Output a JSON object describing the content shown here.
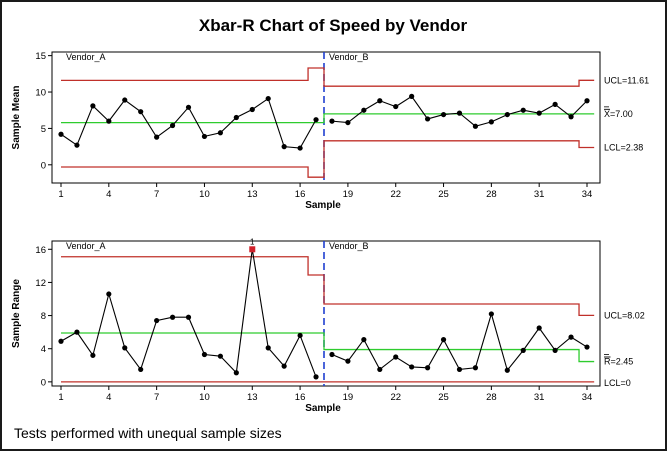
{
  "title": "Xbar-R Chart of Speed by Vendor",
  "footnote": "Tests performed with unequal sample sizes",
  "colors": {
    "data": "#000000",
    "limits": "#c0302a",
    "center": "#2ecc2e",
    "stage_divider": "#1f3fd0",
    "flagged_point": "#d0202a"
  },
  "chart_data": [
    {
      "type": "line",
      "name": "xbar",
      "xlabel": "Sample",
      "ylabel": "Sample Mean",
      "xlim": [
        1,
        34
      ],
      "ylim": [
        -2.5,
        15.5
      ],
      "x_ticks": [
        1,
        4,
        7,
        10,
        13,
        16,
        19,
        22,
        25,
        28,
        31,
        34
      ],
      "y_ticks": [
        0,
        5,
        10,
        15
      ],
      "stages": [
        {
          "label": "Vendor_A",
          "samples": [
            1,
            17
          ]
        },
        {
          "label": "Vendor_B",
          "samples": [
            18,
            34
          ]
        }
      ],
      "limit_labels": {
        "ucl": "UCL=11.61",
        "center": "X=7.00",
        "center_symbol": "X",
        "center_value": "=7.00",
        "lcl": "LCL=2.38"
      },
      "x": [
        1,
        2,
        3,
        4,
        5,
        6,
        7,
        8,
        9,
        10,
        11,
        12,
        13,
        14,
        15,
        16,
        17,
        18,
        19,
        20,
        21,
        22,
        23,
        24,
        25,
        26,
        27,
        28,
        29,
        30,
        31,
        32,
        33,
        34
      ],
      "values": [
        4.2,
        2.7,
        8.1,
        6.0,
        8.9,
        7.3,
        3.8,
        5.4,
        7.9,
        3.9,
        4.4,
        6.5,
        7.6,
        9.1,
        2.5,
        2.3,
        6.2,
        6.0,
        5.8,
        7.5,
        8.8,
        8.0,
        9.4,
        6.3,
        6.9,
        7.1,
        5.3,
        5.9,
        6.9,
        7.5,
        7.1,
        8.3,
        6.6,
        8.8
      ],
      "ucl": [
        11.6,
        11.6,
        11.6,
        11.6,
        11.6,
        11.6,
        11.6,
        11.6,
        11.6,
        11.6,
        11.6,
        11.6,
        11.6,
        11.6,
        11.6,
        11.6,
        13.3,
        10.8,
        10.8,
        10.8,
        10.8,
        10.8,
        10.8,
        10.8,
        10.8,
        10.8,
        10.8,
        10.8,
        10.8,
        10.8,
        10.8,
        10.8,
        10.8,
        11.61
      ],
      "center": [
        5.8,
        5.8,
        5.8,
        5.8,
        5.8,
        5.8,
        5.8,
        5.8,
        5.8,
        5.8,
        5.8,
        5.8,
        5.8,
        5.8,
        5.8,
        5.8,
        5.8,
        7.0,
        7.0,
        7.0,
        7.0,
        7.0,
        7.0,
        7.0,
        7.0,
        7.0,
        7.0,
        7.0,
        7.0,
        7.0,
        7.0,
        7.0,
        7.0,
        7.0
      ],
      "lcl": [
        -0.3,
        -0.3,
        -0.3,
        -0.3,
        -0.3,
        -0.3,
        -0.3,
        -0.3,
        -0.3,
        -0.3,
        -0.3,
        -0.3,
        -0.3,
        -0.3,
        -0.3,
        -0.3,
        -1.7,
        3.3,
        3.3,
        3.3,
        3.3,
        3.3,
        3.3,
        3.3,
        3.3,
        3.3,
        3.3,
        3.3,
        3.3,
        3.3,
        3.3,
        3.3,
        3.3,
        2.38
      ]
    },
    {
      "type": "line",
      "name": "range",
      "xlabel": "Sample",
      "ylabel": "Sample Range",
      "xlim": [
        1,
        34
      ],
      "ylim": [
        -0.5,
        17
      ],
      "x_ticks": [
        1,
        4,
        7,
        10,
        13,
        16,
        19,
        22,
        25,
        28,
        31,
        34
      ],
      "y_ticks": [
        0,
        4,
        8,
        12,
        16
      ],
      "stages": [
        {
          "label": "Vendor_A",
          "samples": [
            1,
            17
          ]
        },
        {
          "label": "Vendor_B",
          "samples": [
            18,
            34
          ]
        }
      ],
      "limit_labels": {
        "ucl": "UCL=8.02",
        "center": "R=2.45",
        "center_symbol": "R",
        "center_value": "=2.45",
        "lcl": "LCL=0"
      },
      "flagged": [
        {
          "x": 13,
          "marker": "1"
        }
      ],
      "x": [
        1,
        2,
        3,
        4,
        5,
        6,
        7,
        8,
        9,
        10,
        11,
        12,
        13,
        14,
        15,
        16,
        17,
        18,
        19,
        20,
        21,
        22,
        23,
        24,
        25,
        26,
        27,
        28,
        29,
        30,
        31,
        32,
        33,
        34
      ],
      "values": [
        4.9,
        6.0,
        3.2,
        10.6,
        4.1,
        1.5,
        7.4,
        7.8,
        7.8,
        3.3,
        3.1,
        1.1,
        16.0,
        4.1,
        1.9,
        5.6,
        0.6,
        3.3,
        2.5,
        5.1,
        1.5,
        3.0,
        1.8,
        1.7,
        5.1,
        1.5,
        1.7,
        8.2,
        1.4,
        3.8,
        6.5,
        3.8,
        5.4,
        4.2
      ],
      "ucl": [
        15.1,
        15.1,
        15.1,
        15.1,
        15.1,
        15.1,
        15.1,
        15.1,
        15.1,
        15.1,
        15.1,
        15.1,
        15.1,
        15.1,
        15.1,
        15.1,
        12.9,
        9.4,
        9.4,
        9.4,
        9.4,
        9.4,
        9.4,
        9.4,
        9.4,
        9.4,
        9.4,
        9.4,
        9.4,
        9.4,
        9.4,
        9.4,
        9.4,
        8.02
      ],
      "center": [
        5.9,
        5.9,
        5.9,
        5.9,
        5.9,
        5.9,
        5.9,
        5.9,
        5.9,
        5.9,
        5.9,
        5.9,
        5.9,
        5.9,
        5.9,
        5.9,
        5.9,
        3.9,
        3.9,
        3.9,
        3.9,
        3.9,
        3.9,
        3.9,
        3.9,
        3.9,
        3.9,
        3.9,
        3.9,
        3.9,
        3.9,
        3.9,
        3.9,
        2.45
      ],
      "lcl": [
        0,
        0,
        0,
        0,
        0,
        0,
        0,
        0,
        0,
        0,
        0,
        0,
        0,
        0,
        0,
        0,
        0,
        0,
        0,
        0,
        0,
        0,
        0,
        0,
        0,
        0,
        0,
        0,
        0,
        0,
        0,
        0,
        0,
        0
      ]
    }
  ]
}
